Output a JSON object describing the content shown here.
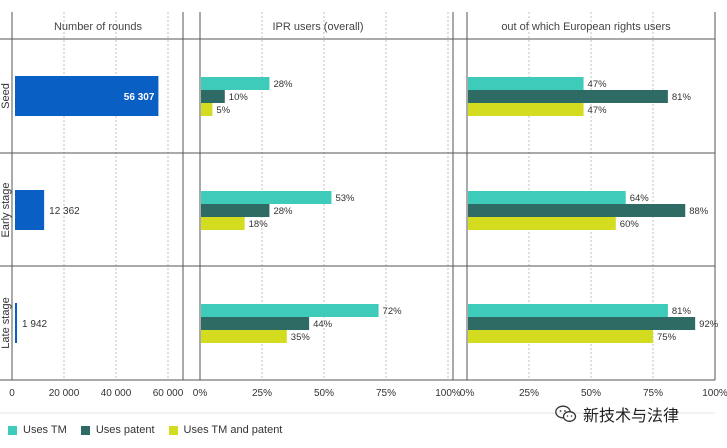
{
  "chart_data": {
    "type": "bar",
    "orientation": "horizontal",
    "categories": [
      "Seed",
      "Early stage",
      "Late stage"
    ],
    "panels": [
      {
        "title": "Number of rounds",
        "xlim": [
          0,
          65000
        ],
        "ticks": [
          0,
          20000,
          40000,
          60000
        ],
        "tick_labels": [
          "0",
          "20 000",
          "40 000",
          "60 000"
        ],
        "values": [
          56307,
          12362,
          1942
        ],
        "value_labels": [
          "56 307",
          "12 362",
          "1 942"
        ]
      },
      {
        "title": "IPR users (overall)",
        "xlim": [
          0,
          100
        ],
        "ticks": [
          0,
          25,
          50,
          75,
          100
        ],
        "tick_labels": [
          "0%",
          "25%",
          "50%",
          "75%",
          "100%"
        ],
        "series": [
          {
            "name": "Uses TM",
            "values": [
              28,
              53,
              72
            ]
          },
          {
            "name": "Uses patent",
            "values": [
              10,
              28,
              44
            ]
          },
          {
            "name": "Uses TM and patent",
            "values": [
              5,
              18,
              35
            ]
          }
        ]
      },
      {
        "title": "out of which European rights users",
        "xlim": [
          0,
          100
        ],
        "ticks": [
          0,
          25,
          50,
          75,
          100
        ],
        "tick_labels": [
          "0%",
          "25%",
          "50%",
          "75%",
          "100%"
        ],
        "series": [
          {
            "name": "Uses TM",
            "values": [
              47,
              64,
              81
            ]
          },
          {
            "name": "Uses patent",
            "values": [
              81,
              88,
              92
            ]
          },
          {
            "name": "Uses TM and patent",
            "values": [
              47,
              60,
              75
            ]
          }
        ]
      }
    ],
    "legend": [
      "Uses TM",
      "Uses patent",
      "Uses TM and patent"
    ],
    "legend_position": "bottom-left"
  },
  "colors": {
    "rounds": "#0a5fc4",
    "tm": "#3ecbb9",
    "patent": "#2e6b64",
    "tm_and_patent": "#d4dc1f",
    "grid": "#9a9a9a",
    "separator": "#555555"
  },
  "watermark": {
    "text": "新技术与法律",
    "icon": "wechat-icon"
  }
}
